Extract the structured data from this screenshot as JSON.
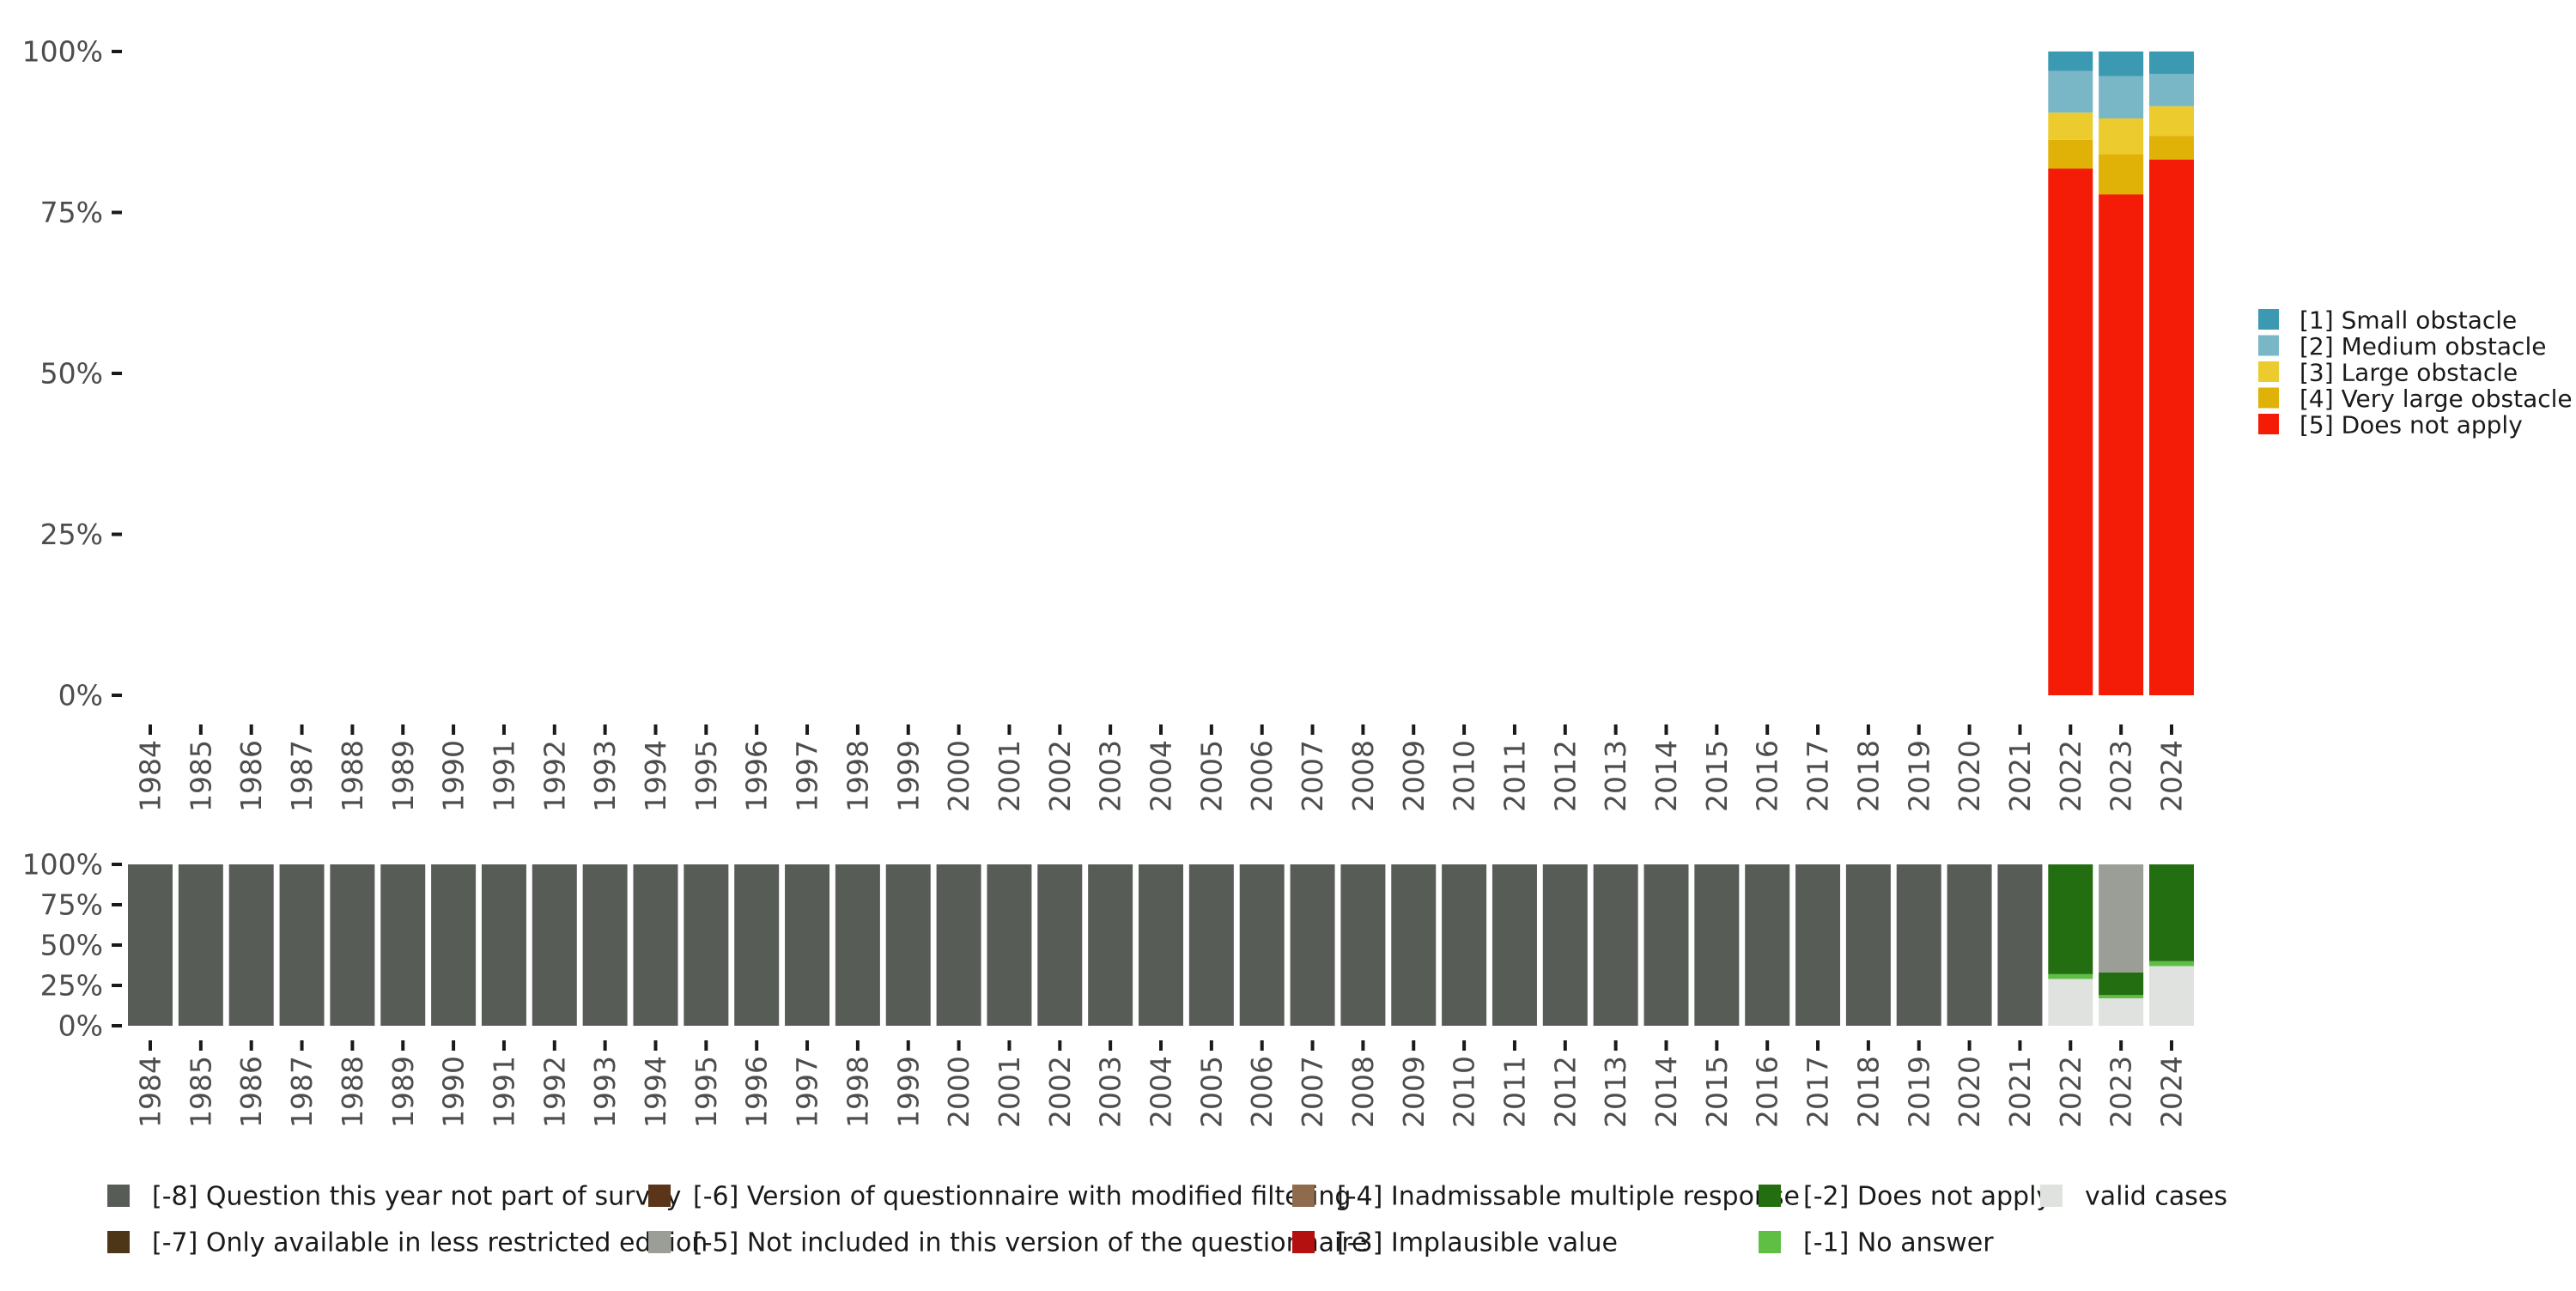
{
  "chart_data": [
    {
      "type": "bar",
      "stacked": true,
      "title": "",
      "xlabel": "",
      "ylabel": "",
      "ylim": [
        0,
        1
      ],
      "y_ticks": [
        "0%",
        "25%",
        "50%",
        "75%",
        "100%"
      ],
      "categories": [
        "1984",
        "1985",
        "1986",
        "1987",
        "1988",
        "1989",
        "1990",
        "1991",
        "1992",
        "1993",
        "1994",
        "1995",
        "1996",
        "1997",
        "1998",
        "1999",
        "2000",
        "2001",
        "2002",
        "2003",
        "2004",
        "2005",
        "2006",
        "2007",
        "2008",
        "2009",
        "2010",
        "2011",
        "2012",
        "2013",
        "2014",
        "2015",
        "2016",
        "2017",
        "2018",
        "2019",
        "2020",
        "2021",
        "2022",
        "2023",
        "2024"
      ],
      "legend_position": "right",
      "series": [
        {
          "name": "[5] Does not apply",
          "color": "#f41c06",
          "values": {
            "2022": 0.818,
            "2023": 0.778,
            "2024": 0.832
          }
        },
        {
          "name": "[4] Very large obstacle",
          "color": "#e0b106",
          "values": {
            "2022": 0.045,
            "2023": 0.062,
            "2024": 0.037
          }
        },
        {
          "name": "[3] Large obstacle",
          "color": "#ebcb2e",
          "values": {
            "2022": 0.042,
            "2023": 0.056,
            "2024": 0.046
          }
        },
        {
          "name": "[2] Medium obstacle",
          "color": "#7ab7c6",
          "values": {
            "2022": 0.065,
            "2023": 0.066,
            "2024": 0.05
          }
        },
        {
          "name": "[1] Small obstacle",
          "color": "#3b99b1",
          "values": {
            "2022": 0.03,
            "2023": 0.038,
            "2024": 0.035
          }
        }
      ]
    },
    {
      "type": "bar",
      "stacked": true,
      "title": "",
      "xlabel": "",
      "ylabel": "",
      "ylim": [
        0,
        1
      ],
      "y_ticks": [
        "0%",
        "25%",
        "50%",
        "75%",
        "100%"
      ],
      "categories": [
        "1984",
        "1985",
        "1986",
        "1987",
        "1988",
        "1989",
        "1990",
        "1991",
        "1992",
        "1993",
        "1994",
        "1995",
        "1996",
        "1997",
        "1998",
        "1999",
        "2000",
        "2001",
        "2002",
        "2003",
        "2004",
        "2005",
        "2006",
        "2007",
        "2008",
        "2009",
        "2010",
        "2011",
        "2012",
        "2013",
        "2014",
        "2015",
        "2016",
        "2017",
        "2018",
        "2019",
        "2020",
        "2021",
        "2022",
        "2023",
        "2024"
      ],
      "legend_position": "bottom",
      "series": [
        {
          "name": "valid cases",
          "color": "#dfe2de",
          "values": {
            "2022": 0.29,
            "2023": 0.17,
            "2024": 0.37
          }
        },
        {
          "name": "[-1] No answer",
          "color": "#5fbf45",
          "values": {
            "2022": 0.03,
            "2023": 0.02,
            "2024": 0.03
          }
        },
        {
          "name": "[-2] Does not apply",
          "color": "#226e11",
          "values": {
            "2022": 0.68,
            "2023": 0.14,
            "2024": 0.6
          }
        },
        {
          "name": "[-3] Implausible value",
          "color": "#b3100f",
          "values": {}
        },
        {
          "name": "[-4] Inadmissable multiple response",
          "color": "#8e6b4d",
          "values": {}
        },
        {
          "name": "[-5] Not included in this version of the questionnaire",
          "color": "#9a9e97",
          "values": {
            "2023": 0.67
          }
        },
        {
          "name": "[-6] Version of questionnaire with modified filtering",
          "color": "#5a3519",
          "values": {}
        },
        {
          "name": "[-7] Only available in less restricted edition",
          "color": "#4d3518",
          "values": {}
        },
        {
          "name": "[-8] Question this year not part of survey",
          "color": "#575d56",
          "values": {
            "1984": 1,
            "1985": 1,
            "1986": 1,
            "1987": 1,
            "1988": 1,
            "1989": 1,
            "1990": 1,
            "1991": 1,
            "1992": 1,
            "1993": 1,
            "1994": 1,
            "1995": 1,
            "1996": 1,
            "1997": 1,
            "1998": 1,
            "1999": 1,
            "2000": 1,
            "2001": 1,
            "2002": 1,
            "2003": 1,
            "2004": 1,
            "2005": 1,
            "2006": 1,
            "2007": 1,
            "2008": 1,
            "2009": 1,
            "2010": 1,
            "2011": 1,
            "2012": 1,
            "2013": 1,
            "2014": 1,
            "2015": 1,
            "2016": 1,
            "2017": 1,
            "2018": 1,
            "2019": 1,
            "2020": 1,
            "2021": 1
          }
        }
      ]
    }
  ],
  "top_legend_order": [
    "[1] Small obstacle",
    "[2] Medium obstacle",
    "[3] Large obstacle",
    "[4] Very large obstacle",
    "[5] Does not apply"
  ],
  "bottom_legend_columns": [
    [
      "[-8] Question this year not part of survey",
      "[-7] Only available in less restricted edition"
    ],
    [
      "[-6] Version of questionnaire with modified filtering",
      "[-5] Not included in this version of the questionnaire"
    ],
    [
      "[-4] Inadmissable multiple response",
      "[-3] Implausible value"
    ],
    [
      "[-2] Does not apply",
      "[-1] No answer"
    ],
    [
      "valid cases"
    ]
  ]
}
